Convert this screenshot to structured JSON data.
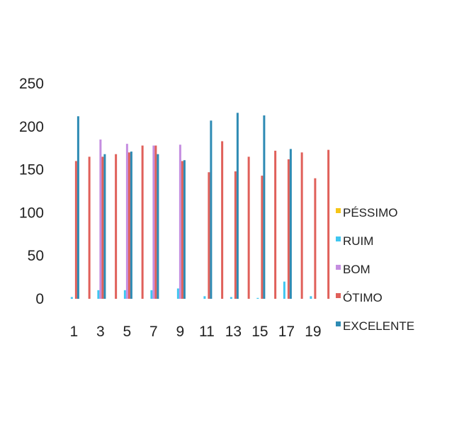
{
  "chart_data": {
    "type": "bar",
    "title": "",
    "xlabel": "",
    "ylabel": "",
    "ylim": [
      0,
      250
    ],
    "yticks": [
      0,
      50,
      100,
      150,
      200,
      250
    ],
    "grid": false,
    "legend_position": "right",
    "x_tick_labels": [
      "1",
      "3",
      "5",
      "7",
      "9",
      "11",
      "13",
      "15",
      "17",
      "19"
    ],
    "categories": [
      "1",
      "2",
      "3",
      "4",
      "5",
      "6",
      "7",
      "8",
      "9",
      "10",
      "11",
      "12",
      "13",
      "14",
      "15",
      "16",
      "17",
      "18",
      "19",
      "20"
    ],
    "series": [
      {
        "name": "PÉSSIMO",
        "color": "#f5c518",
        "values": [
          0,
          0,
          0,
          0,
          0,
          0,
          0,
          0,
          0,
          0,
          0,
          0,
          0,
          0,
          0,
          0,
          0,
          0,
          0,
          0
        ]
      },
      {
        "name": "RUIM",
        "color": "#3fc6f0",
        "values": [
          2,
          0,
          10,
          0,
          10,
          0,
          10,
          0,
          12,
          0,
          3,
          0,
          2,
          0,
          1,
          0,
          20,
          0,
          3,
          0
        ]
      },
      {
        "name": "BOM",
        "color": "#c58ee0",
        "values": [
          0,
          0,
          185,
          0,
          180,
          0,
          178,
          0,
          179,
          0,
          0,
          0,
          0,
          0,
          0,
          0,
          0,
          0,
          0,
          0
        ]
      },
      {
        "name": "ÓTIMO",
        "color": "#e0605a",
        "values": [
          160,
          165,
          165,
          168,
          170,
          178,
          178,
          0,
          160,
          0,
          147,
          183,
          148,
          165,
          143,
          172,
          162,
          170,
          140,
          173
        ]
      },
      {
        "name": "EXCELENTE",
        "color": "#2e8bb4",
        "values": [
          212,
          0,
          168,
          0,
          171,
          0,
          168,
          0,
          161,
          0,
          207,
          0,
          216,
          0,
          213,
          0,
          174,
          0,
          0,
          0
        ]
      }
    ]
  }
}
